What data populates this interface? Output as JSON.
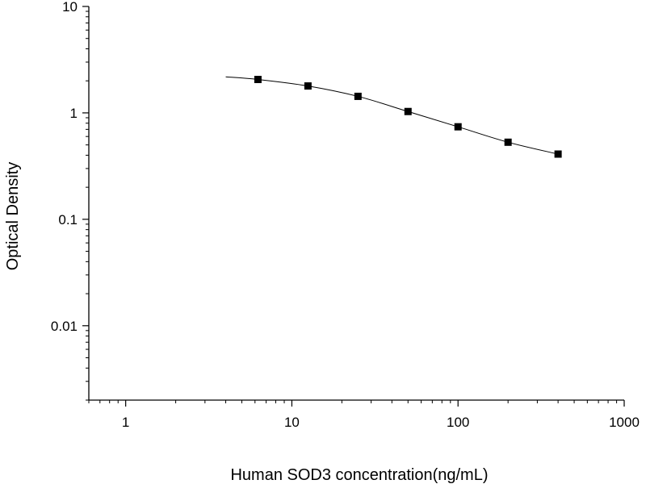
{
  "chart_data": {
    "type": "scatter",
    "title": "",
    "xlabel": "Human SOD3 concentration(ng/mL)",
    "ylabel": "Optical Density",
    "xscale": "log",
    "yscale": "log",
    "xlim": [
      0.6,
      1000
    ],
    "ylim": [
      0.002,
      10
    ],
    "x_ticks": [
      1,
      10,
      100,
      1000
    ],
    "x_tick_labels": [
      "1",
      "10",
      "100",
      "1000"
    ],
    "y_ticks": [
      0.01,
      0.1,
      1,
      10
    ],
    "y_tick_labels": [
      "0.01",
      "0.1",
      "1",
      "10"
    ],
    "grid": false,
    "legend": "none",
    "series": [
      {
        "marker": "square",
        "color": "#000000",
        "x": [
          6.25,
          12.5,
          25,
          50,
          100,
          200,
          400
        ],
        "y": [
          2.06,
          1.79,
          1.43,
          1.03,
          0.74,
          0.53,
          0.41
        ]
      }
    ],
    "fit_curve": {
      "style": "solid",
      "color": "#000000",
      "x": [
        4,
        6.25,
        12.5,
        25,
        50,
        100,
        200,
        400
      ],
      "y": [
        2.18,
        2.06,
        1.79,
        1.43,
        1.03,
        0.74,
        0.53,
        0.41
      ]
    }
  }
}
